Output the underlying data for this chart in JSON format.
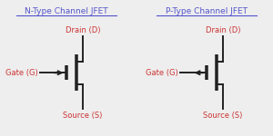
{
  "title_left": "N-Type Channel JFET",
  "title_right": "P-Type Channel JFET",
  "title_color": "#5555cc",
  "label_color": "#cc3333",
  "bg_color": "#eeeeee",
  "line_color": "#222222",
  "label_drain": "Drain (D)",
  "label_gate": "Gate (G)",
  "label_source": "Source (S)",
  "title_fontsize": 6.5,
  "label_fontsize": 6.0
}
